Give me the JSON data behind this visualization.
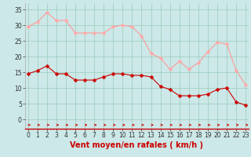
{
  "hours": [
    0,
    1,
    2,
    3,
    4,
    5,
    6,
    7,
    8,
    9,
    10,
    11,
    12,
    13,
    14,
    15,
    16,
    17,
    18,
    19,
    20,
    21,
    22,
    23
  ],
  "wind_avg": [
    14.5,
    15.5,
    17,
    14.5,
    14.5,
    12.5,
    12.5,
    12.5,
    13.5,
    14.5,
    14.5,
    14,
    14,
    13.5,
    10.5,
    9.5,
    7.5,
    7.5,
    7.5,
    8,
    9.5,
    10,
    5.5,
    4.5
  ],
  "wind_gust": [
    29.5,
    31,
    34,
    31.5,
    31.5,
    27.5,
    27.5,
    27.5,
    27.5,
    29.5,
    30,
    29.5,
    26.5,
    21,
    19.5,
    16,
    18.5,
    16,
    18,
    21.5,
    24.5,
    24,
    15.5,
    11
  ],
  "bg_color": "#cce8e8",
  "grid_color": "#99ccbb",
  "line_avg_color": "#cc0000",
  "line_gust_color": "#ff9999",
  "marker_avg_color": "#cc0000",
  "marker_gust_color": "#ffaaaa",
  "marker_size": 2.5,
  "linewidth": 0.8,
  "xlabel": "Vent moyen/en rafales ( km/h )",
  "xlabel_color": "#cc0000",
  "xlabel_fontsize": 7,
  "ytick_labels": [
    "0",
    "5",
    "10",
    "15",
    "20",
    "25",
    "30",
    "35"
  ],
  "ytick_vals": [
    0,
    5,
    10,
    15,
    20,
    25,
    30,
    35
  ],
  "xtick_vals": [
    0,
    1,
    2,
    3,
    4,
    5,
    6,
    7,
    8,
    9,
    10,
    11,
    12,
    13,
    14,
    15,
    16,
    17,
    18,
    19,
    20,
    21,
    22,
    23
  ],
  "ylim": [
    -3,
    37
  ],
  "xlim": [
    -0.3,
    23.3
  ],
  "tick_fontsize": 5.5,
  "arrow_color": "#cc0000",
  "spine_color": "#cc0000"
}
